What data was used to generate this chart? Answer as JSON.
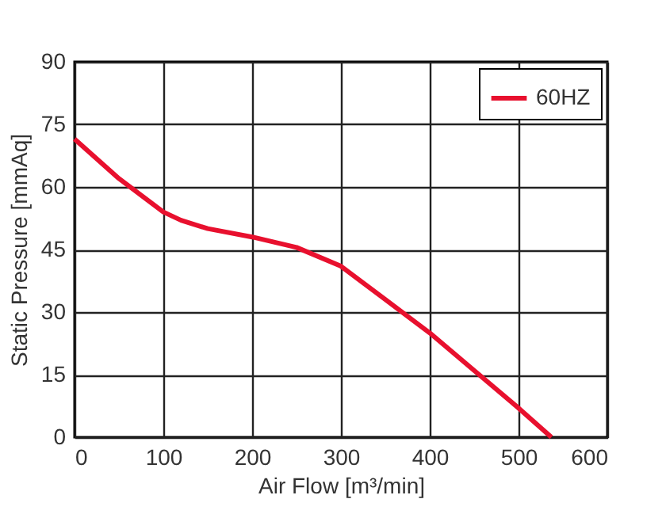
{
  "chart_data": {
    "type": "line",
    "xlabel": "Air Flow [m³/min]",
    "ylabel": "Static Pressure [mmAq]",
    "xlim": [
      0,
      600
    ],
    "xticks": [
      0,
      100,
      200,
      300,
      400,
      500,
      600
    ],
    "ylim": [
      0,
      90
    ],
    "yticks": [
      0,
      15,
      30,
      45,
      60,
      75,
      90
    ],
    "grid": true,
    "legend": "top right",
    "line_style": "solid",
    "series": [
      {
        "name": "60HZ",
        "color": "#e8102e",
        "x": [
          0,
          50,
          100,
          120,
          150,
          200,
          250,
          300,
          350,
          400,
          450,
          500,
          537
        ],
        "values": [
          71.5,
          62,
          54,
          52,
          50,
          48,
          45.5,
          41,
          33,
          25,
          16,
          7,
          0
        ]
      }
    ]
  }
}
